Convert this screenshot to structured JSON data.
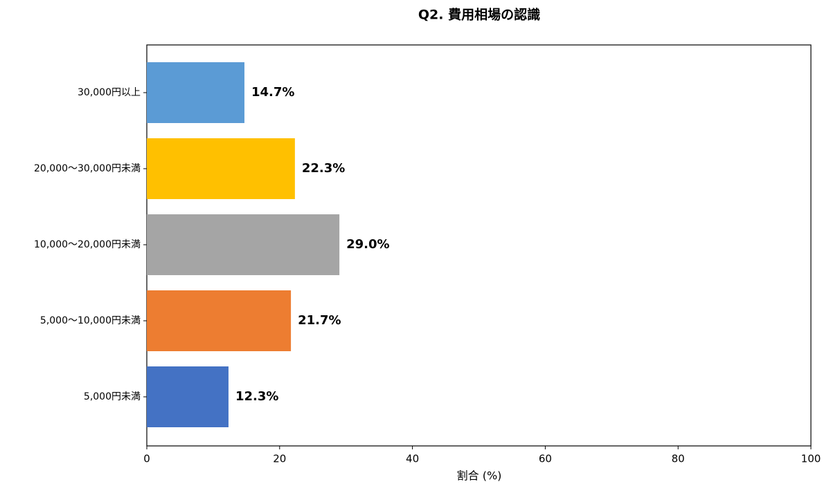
{
  "chart_data": {
    "type": "bar",
    "orientation": "horizontal",
    "title": "Q2. 費用相場の認識",
    "categories": [
      "30,000円以上",
      "20,000〜30,000円未満",
      "10,000〜20,000円未満",
      "5,000〜10,000円未満",
      "5,000円未満"
    ],
    "values": [
      14.7,
      22.3,
      29.0,
      21.7,
      12.3
    ],
    "value_labels": [
      "14.7%",
      "22.3%",
      "29.0%",
      "21.7%",
      "12.3%"
    ],
    "colors": [
      "#5b9bd5",
      "#ffc000",
      "#a5a5a5",
      "#ed7d31",
      "#4472c4"
    ],
    "xlabel": "割合 (%)",
    "xlim": [
      0,
      100
    ],
    "xticks": [
      0,
      20,
      40,
      60,
      80,
      100
    ]
  }
}
